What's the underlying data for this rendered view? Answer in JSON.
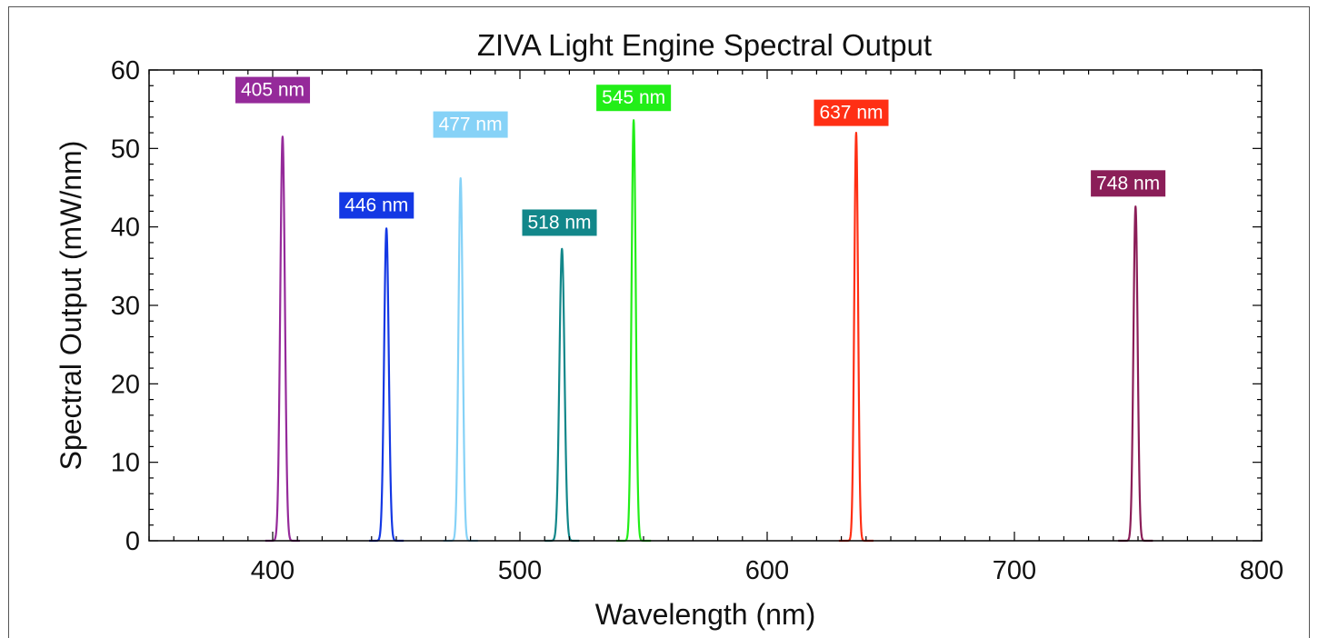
{
  "chart_data": {
    "type": "line",
    "title": "ZIVA Light Engine Spectral Output",
    "xlabel": "Wavelength (nm)",
    "ylabel": "Spectral Output (mW/nm)",
    "xlim": [
      350,
      800
    ],
    "ylim": [
      0,
      60
    ],
    "xticks": [
      400,
      500,
      600,
      700,
      800
    ],
    "yticks": [
      0,
      10,
      20,
      30,
      40,
      50,
      60
    ],
    "grid": false,
    "legend": "none",
    "series": [
      {
        "name": "405 nm",
        "peak_wavelength": 404,
        "peak_value": 51.5,
        "fwhm": 2.2,
        "color": "#952a9a"
      },
      {
        "name": "446 nm",
        "peak_wavelength": 446,
        "peak_value": 39.8,
        "fwhm": 2.2,
        "color": "#1438e4"
      },
      {
        "name": "477 nm",
        "peak_wavelength": 476,
        "peak_value": 46.2,
        "fwhm": 2.0,
        "color": "#86d2f7"
      },
      {
        "name": "518 nm",
        "peak_wavelength": 517,
        "peak_value": 37.2,
        "fwhm": 2.4,
        "color": "#12878a"
      },
      {
        "name": "545 nm",
        "peak_wavelength": 546,
        "peak_value": 53.6,
        "fwhm": 2.0,
        "color": "#22ee18"
      },
      {
        "name": "637 nm",
        "peak_wavelength": 636,
        "peak_value": 52.0,
        "fwhm": 1.8,
        "color": "#ff2f14"
      },
      {
        "name": "748 nm",
        "peak_wavelength": 749,
        "peak_value": 42.6,
        "fwhm": 2.0,
        "color": "#8b1e58"
      }
    ],
    "annotations": [
      {
        "text": "405 nm",
        "x": 400,
        "y": 57.5,
        "color": "#952a9a"
      },
      {
        "text": "446 nm",
        "x": 442,
        "y": 42.8,
        "color": "#1438e4"
      },
      {
        "text": "477 nm",
        "x": 480,
        "y": 53.1,
        "color": "#86d2f7"
      },
      {
        "text": "518 nm",
        "x": 516,
        "y": 40.6,
        "color": "#12878a"
      },
      {
        "text": "545 nm",
        "x": 546,
        "y": 56.5,
        "color": "#22ee18"
      },
      {
        "text": "637 nm",
        "x": 634,
        "y": 54.6,
        "color": "#ff2f14"
      },
      {
        "text": "748 nm",
        "x": 746,
        "y": 45.6,
        "color": "#8b1e58"
      }
    ]
  }
}
